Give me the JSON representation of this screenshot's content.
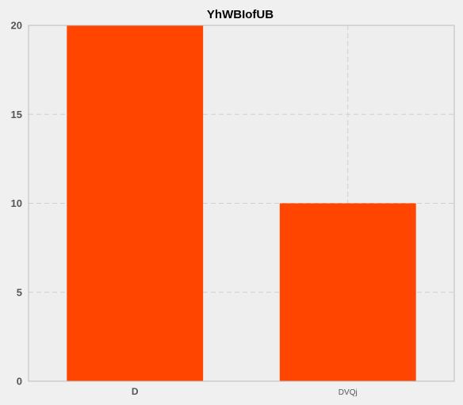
{
  "chart_data": {
    "type": "bar",
    "title": "YhWBIofUB",
    "xlabel": "",
    "ylabel": "",
    "categories": [
      "D",
      "DVQj"
    ],
    "values": [
      20,
      10
    ],
    "ylim": [
      0,
      20
    ],
    "yticks": [
      "0",
      "5",
      "10",
      "15",
      "20"
    ],
    "grid": true,
    "legend": "none"
  },
  "colors": {
    "bar": "#ff4500",
    "figure_background": "#f0f0f0",
    "plot_background": "#eeeeee",
    "grid": "#cfcfcf",
    "spine": "#bcbcbc"
  }
}
